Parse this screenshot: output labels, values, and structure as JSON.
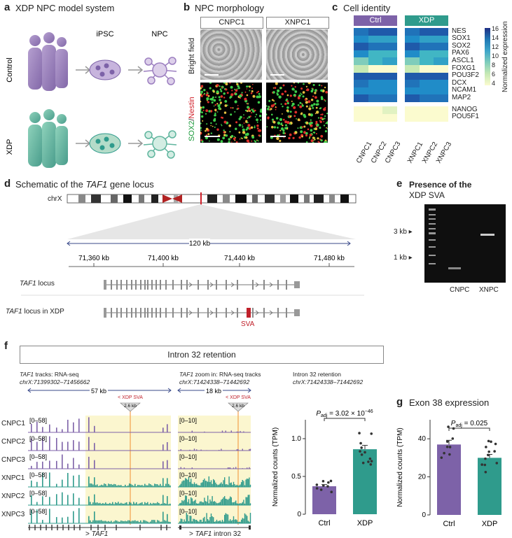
{
  "panels": {
    "a": {
      "letter": "a",
      "title": "XDP NPC model system",
      "control": "Control",
      "xdp": "XDP",
      "ipsc": "iPSC",
      "npc": "NPC"
    },
    "b": {
      "letter": "b",
      "title": "NPC morphology",
      "col1": "CNPC1",
      "col2": "XNPC1",
      "row1": "Bright field",
      "row2_green": "SOX2",
      "row2_sep": "/",
      "row2_red": "Nestin"
    },
    "c": {
      "letter": "c",
      "title": "Cell identity",
      "ctrl": "Ctrl",
      "xdp": "XDP",
      "legend_title": "Normalized expression",
      "legend_ticks": [
        "16",
        "14",
        "12",
        "10",
        "8",
        "6",
        "4"
      ]
    },
    "d": {
      "letter": "d",
      "title_pre": "Schematic of the ",
      "title_gene": "TAF1",
      "title_post": " gene locus",
      "chrom": "chrX",
      "span": "120 kb",
      "ticks": [
        "71,360 kb",
        "71,400 kb",
        "71,440 kb",
        "71,480 kb"
      ],
      "locus1_gene": "TAF1",
      "locus1_rest": " locus",
      "locus2_gene": "TAF1",
      "locus2_rest": " locus in XDP",
      "sva": "SVA"
    },
    "e": {
      "letter": "e",
      "title1": "Presence of the",
      "title2": "XDP SVA",
      "kb3": "3 kb",
      "kb1": "1 kb",
      "lane1": "CNPC",
      "lane2": "XNPC"
    },
    "f": {
      "letter": "f",
      "box": "Intron 32 retention",
      "t1_gene": "TAF1",
      "t1_rest": " tracks: RNA-seq",
      "t1_coord": "chrX:71399302–71456662",
      "t1_span": "57 kb",
      "t2_gene": "TAF1",
      "t2_rest": " zoom in: RNA-seq tracks",
      "t2_coord": "chrX:71424338–71442692",
      "t2_span": "18 kb",
      "t3": "Intron 32 retention",
      "t3_coord": "chrX:71424338–71442692",
      "sva_tag": "< XDP SVA",
      "sva_len": "2.6 kb",
      "range1": "[0–58]",
      "range2": "[0–10]",
      "gene1_arrow": ">",
      "gene1": "TAF1",
      "gene2_arrow": ">",
      "gene2": "TAF1",
      "gene2_rest": " intron 32"
    },
    "g": {
      "letter": "g",
      "title": "Exon 38 expression"
    }
  },
  "samples": [
    "CNPC1",
    "CNPC2",
    "CNPC3",
    "XNPC1",
    "XNPC2",
    "XNPC3"
  ],
  "heatmap": {
    "genes": [
      "NES",
      "SOX1",
      "SOX2",
      "PAX6",
      "ASCL1",
      "FOXG1",
      "POU3F2",
      "DCX",
      "NCAM1",
      "MAP2"
    ],
    "genes2": [
      "NANOG",
      "POU5F1"
    ],
    "values": [
      [
        13,
        14,
        14,
        13,
        14,
        14
      ],
      [
        12,
        11,
        11,
        12,
        11,
        11
      ],
      [
        14,
        13,
        13,
        14,
        13,
        13
      ],
      [
        12,
        10,
        10,
        12,
        10,
        10
      ],
      [
        8,
        10,
        11,
        8,
        10,
        11
      ],
      [
        6,
        4,
        4,
        6,
        4,
        4
      ],
      [
        14,
        14,
        14,
        14,
        14,
        14
      ],
      [
        13,
        12,
        12,
        13,
        12,
        12
      ],
      [
        12,
        12,
        12,
        12,
        12,
        12
      ],
      [
        14,
        13,
        13,
        14,
        13,
        13
      ]
    ],
    "values2": [
      [
        4,
        4,
        5,
        4,
        4,
        4
      ],
      [
        4,
        4,
        4,
        4,
        4,
        4
      ]
    ]
  },
  "chart_data": [
    {
      "type": "bar",
      "title": "",
      "categories": [
        "Ctrl",
        "XDP"
      ],
      "values": [
        0.37,
        0.86
      ],
      "ylabel": "Normalized counts (TPM)",
      "ylim": [
        0,
        1.25
      ],
      "yticks": [
        "0",
        "0.5",
        "1.0"
      ],
      "annotation": "P",
      "annotation_sub": "adj",
      "annotation_val": " = 3.02 × 10",
      "annotation_exp": "−46",
      "colors": [
        "#7d62a8",
        "#2f9b8c"
      ]
    },
    {
      "type": "bar",
      "title": "Exon 38 expression",
      "categories": [
        "Ctrl",
        "XDP"
      ],
      "values": [
        37,
        30
      ],
      "ylabel": "Normalized counts (TPM)",
      "ylim": [
        0,
        50
      ],
      "yticks": [
        "0",
        "20",
        "40"
      ],
      "annotation": "P",
      "annotation_sub": "adj",
      "annotation_val": " = 0.025",
      "colors": [
        "#7d62a8",
        "#2f9b8c"
      ]
    }
  ]
}
